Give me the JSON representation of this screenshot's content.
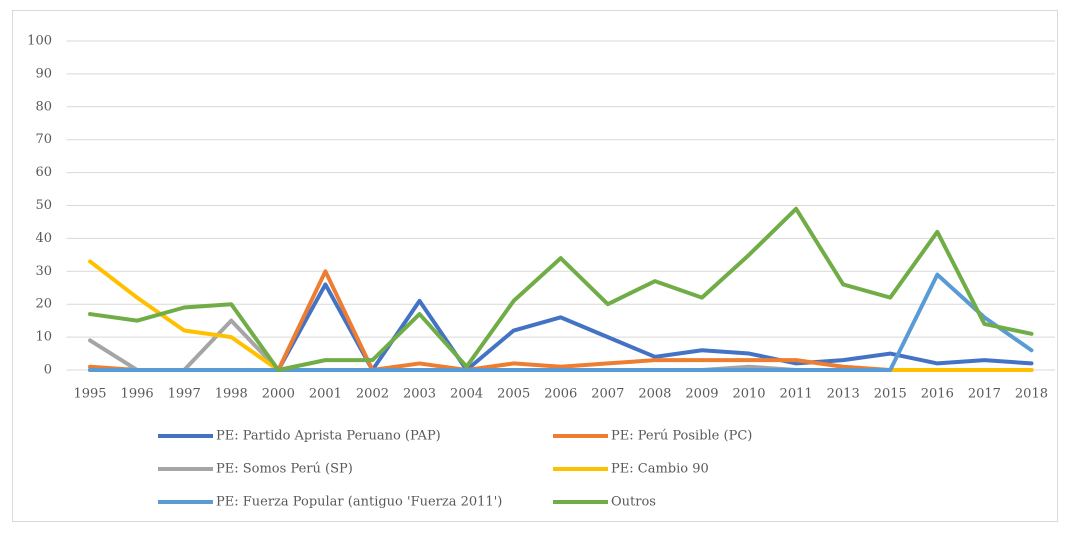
{
  "chart_data": {
    "type": "line",
    "categories": [
      "1995",
      "1996",
      "1997",
      "1998",
      "2000",
      "2001",
      "2002",
      "2003",
      "2004",
      "2005",
      "2006",
      "2007",
      "2008",
      "2009",
      "2010",
      "2011",
      "2013",
      "2015",
      "2016",
      "2017",
      "2018"
    ],
    "series": [
      {
        "name": "PE: Partido Aprista Peruano (PAP)",
        "color": "#4472c4",
        "values": [
          0,
          0,
          0,
          0,
          0,
          26,
          0,
          21,
          0,
          12,
          16,
          10,
          4,
          6,
          5,
          2,
          3,
          5,
          2,
          3,
          2
        ]
      },
      {
        "name": "PE: Perú Posible (PC)",
        "color": "#ed7d31",
        "values": [
          1,
          0,
          0,
          0,
          0,
          30,
          0,
          2,
          0,
          2,
          1,
          2,
          3,
          3,
          3,
          3,
          1,
          0,
          0,
          0,
          0
        ]
      },
      {
        "name": "PE: Somos Perú (SP)",
        "color": "#a5a5a5",
        "values": [
          9,
          0,
          0,
          15,
          0,
          0,
          0,
          0,
          0,
          0,
          0,
          0,
          0,
          0,
          1,
          0,
          0,
          0,
          0,
          0,
          0
        ]
      },
      {
        "name": "PE: Cambio 90",
        "color": "#ffc000",
        "values": [
          33,
          22,
          12,
          10,
          0,
          0,
          0,
          0,
          0,
          0,
          0,
          0,
          0,
          0,
          0,
          0,
          0,
          0,
          0,
          0,
          0
        ]
      },
      {
        "name": "PE: Fuerza Popular (antiguo 'Fuerza 2011')",
        "color": "#5b9bd5",
        "values": [
          0,
          0,
          0,
          0,
          0,
          0,
          0,
          0,
          0,
          0,
          0,
          0,
          0,
          0,
          0,
          0,
          0,
          0,
          29,
          16,
          6
        ]
      },
      {
        "name": "Outros",
        "color": "#70ad47",
        "values": [
          17,
          15,
          19,
          20,
          0,
          3,
          3,
          17,
          1,
          21,
          34,
          20,
          27,
          22,
          35,
          49,
          26,
          22,
          42,
          14,
          11
        ]
      }
    ],
    "ylim": [
      0,
      100
    ],
    "yticks": [
      0,
      10,
      20,
      30,
      40,
      50,
      60,
      70,
      80,
      90,
      100
    ],
    "grid": true
  }
}
